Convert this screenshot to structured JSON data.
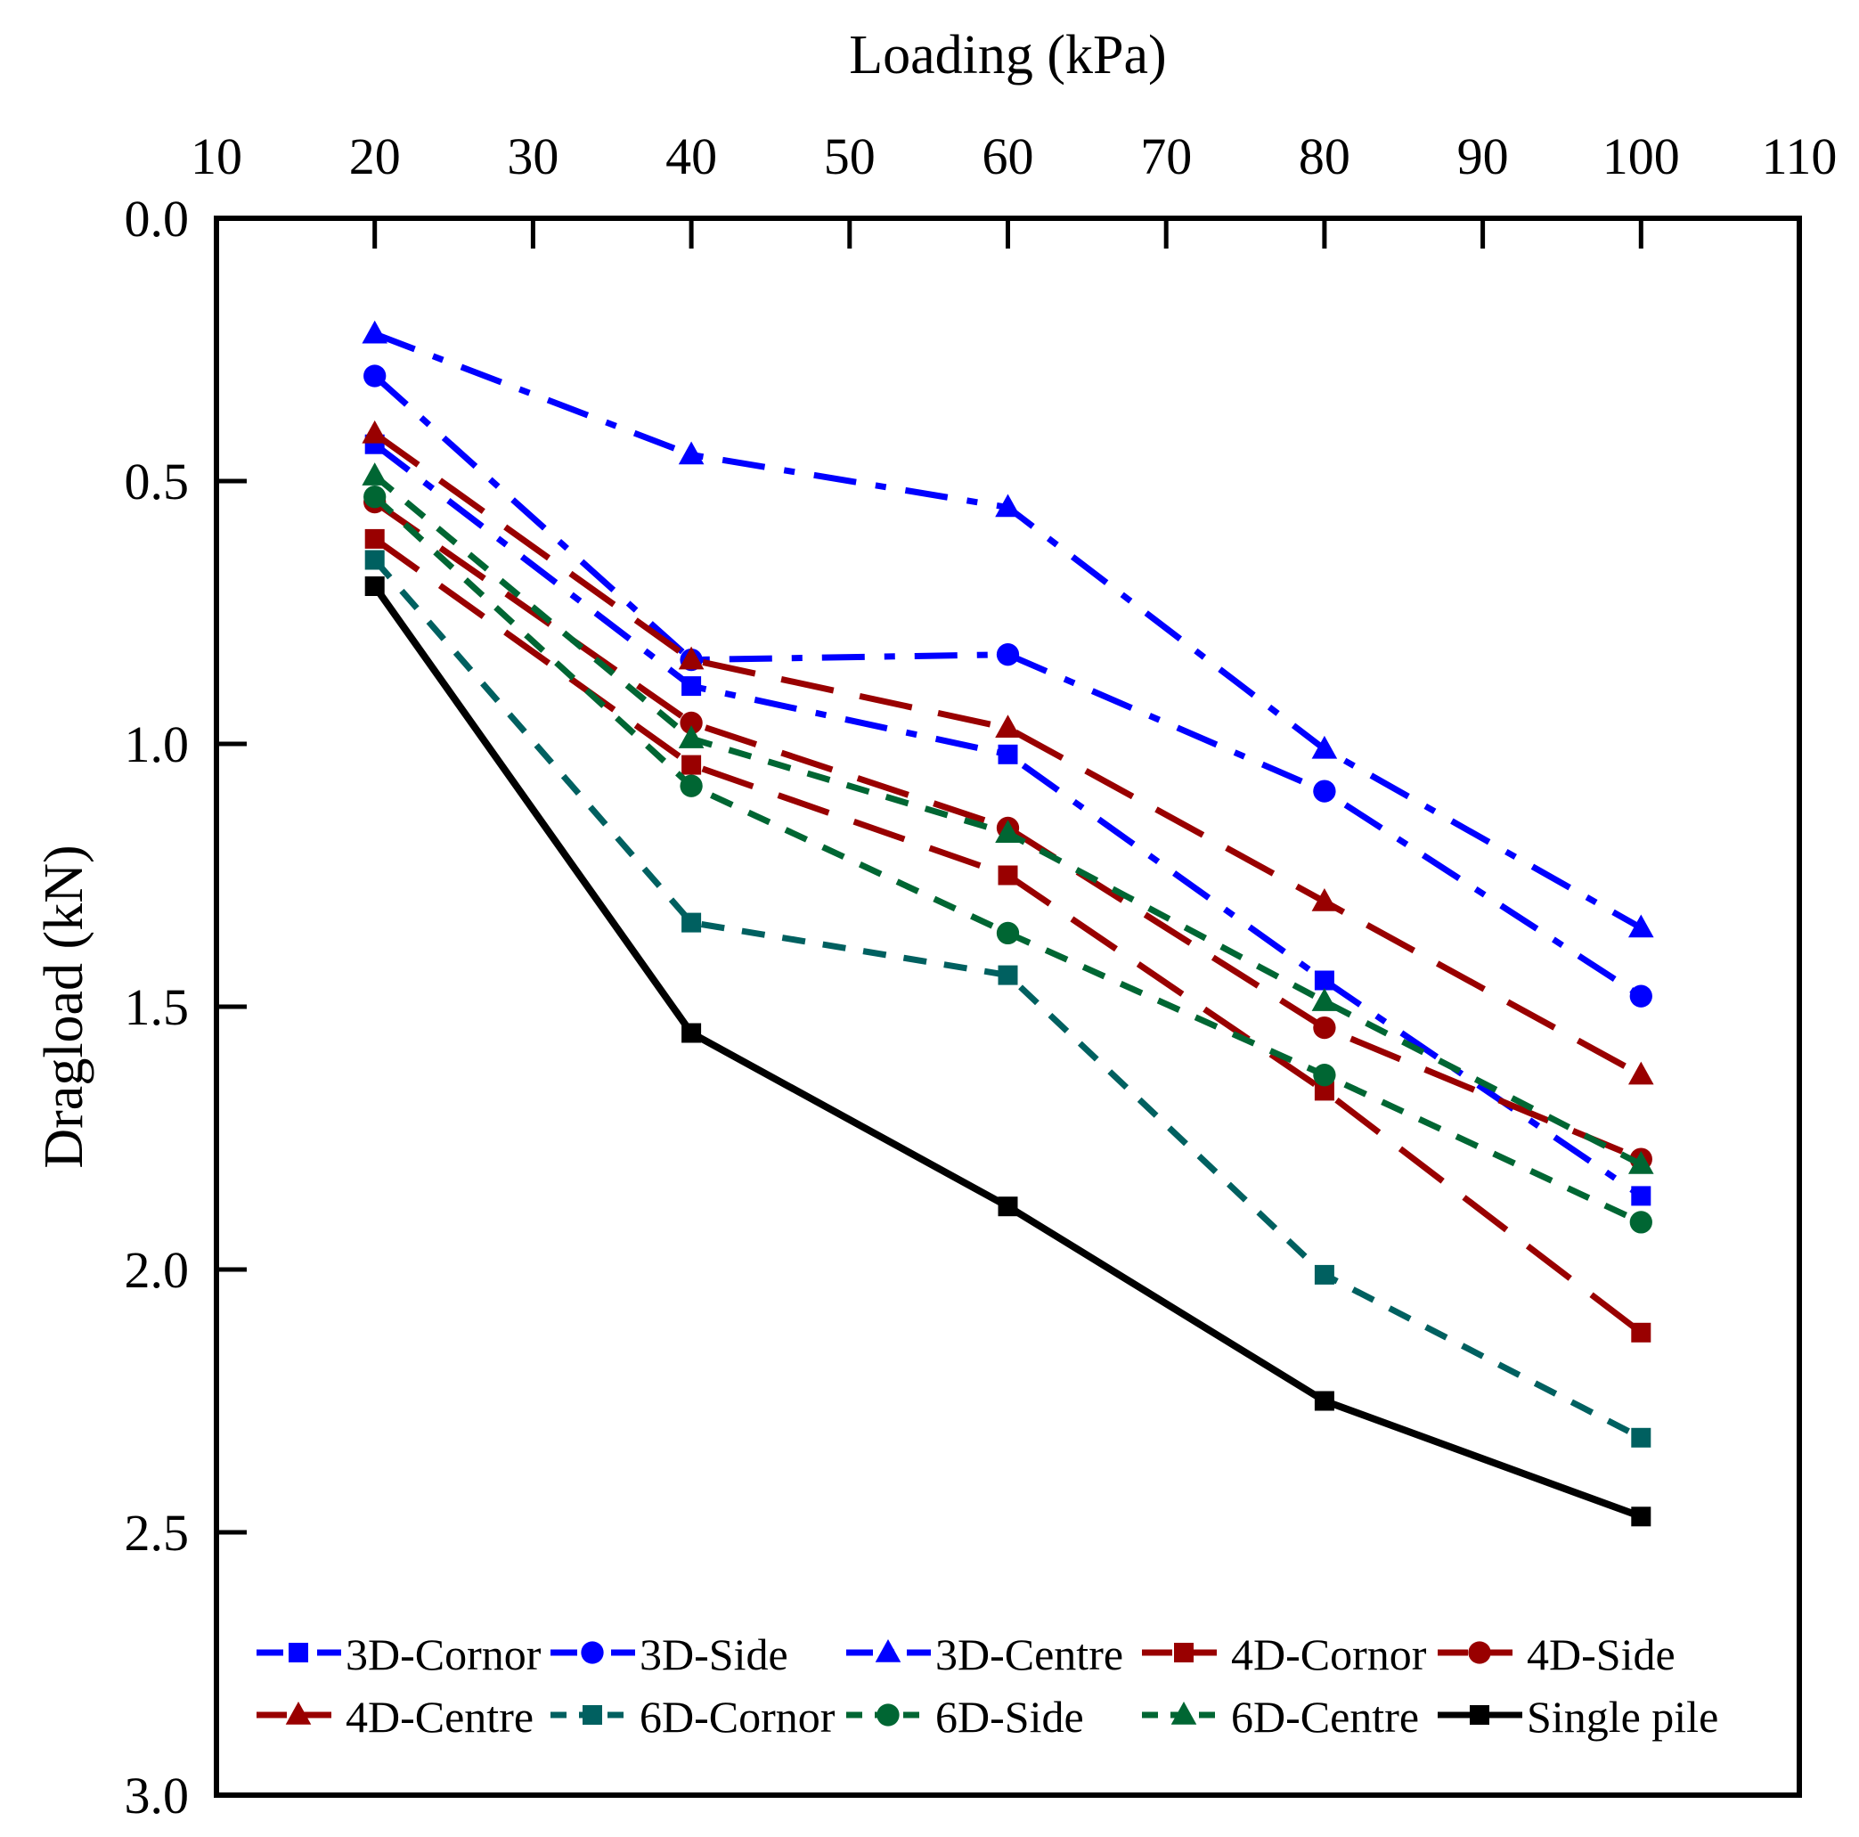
{
  "chart_data": {
    "type": "line",
    "title": "",
    "xlabel": "Loading (kPa)",
    "ylabel": "Dragload (kN)",
    "xlim": [
      10,
      110
    ],
    "ylim": [
      0.0,
      3.0
    ],
    "y_inverted": true,
    "x_axis_position": "top",
    "xticks": [
      10,
      20,
      30,
      40,
      50,
      60,
      70,
      80,
      90,
      100,
      110
    ],
    "xtick_labels": [
      "10",
      "20",
      "30",
      "40",
      "50",
      "60",
      "70",
      "80",
      "90",
      "100",
      "110"
    ],
    "yticks": [
      0.0,
      0.5,
      1.0,
      1.5,
      2.0,
      2.5,
      3.0
    ],
    "ytick_labels": [
      "0.0",
      "0.5",
      "1.0",
      "1.5",
      "2.0",
      "2.5",
      "3.0"
    ],
    "grid": false,
    "legend_position": "bottom",
    "x": [
      20,
      40,
      60,
      80,
      100
    ],
    "series": [
      {
        "name": "3D-Cornor",
        "values": [
          0.43,
          0.89,
          1.02,
          1.45,
          1.86
        ],
        "color": "#0000ff",
        "marker": "square",
        "dash": "dashdot"
      },
      {
        "name": "3D-Side",
        "values": [
          0.3,
          0.84,
          0.83,
          1.09,
          1.48
        ],
        "color": "#0000ff",
        "marker": "circle",
        "dash": "dashdot"
      },
      {
        "name": "3D-Centre",
        "values": [
          0.22,
          0.45,
          0.55,
          1.01,
          1.35
        ],
        "color": "#0000ff",
        "marker": "triangle",
        "dash": "dashdot"
      },
      {
        "name": "4D-Cornor",
        "values": [
          0.61,
          1.04,
          1.25,
          1.66,
          2.12
        ],
        "color": "#990000",
        "marker": "square",
        "dash": "dash"
      },
      {
        "name": "4D-Side",
        "values": [
          0.54,
          0.96,
          1.16,
          1.54,
          1.79
        ],
        "color": "#990000",
        "marker": "circle",
        "dash": "dash"
      },
      {
        "name": "4D-Centre",
        "values": [
          0.41,
          0.84,
          0.97,
          1.3,
          1.63
        ],
        "color": "#990000",
        "marker": "triangle",
        "dash": "dash"
      },
      {
        "name": "6D-Cornor",
        "values": [
          0.65,
          1.34,
          1.44,
          2.01,
          2.32
        ],
        "color": "#006060",
        "marker": "square",
        "dash": "shortdash"
      },
      {
        "name": "6D-Side",
        "values": [
          0.53,
          1.08,
          1.36,
          1.63,
          1.91
        ],
        "color": "#006633",
        "marker": "circle",
        "dash": "shortdash"
      },
      {
        "name": "6D-Centre",
        "values": [
          0.49,
          0.99,
          1.17,
          1.49,
          1.8
        ],
        "color": "#006633",
        "marker": "triangle",
        "dash": "shortdash"
      },
      {
        "name": "Single pile",
        "values": [
          0.7,
          1.55,
          1.88,
          2.25,
          2.47
        ],
        "color": "#000000",
        "marker": "square",
        "dash": "solid"
      }
    ]
  }
}
